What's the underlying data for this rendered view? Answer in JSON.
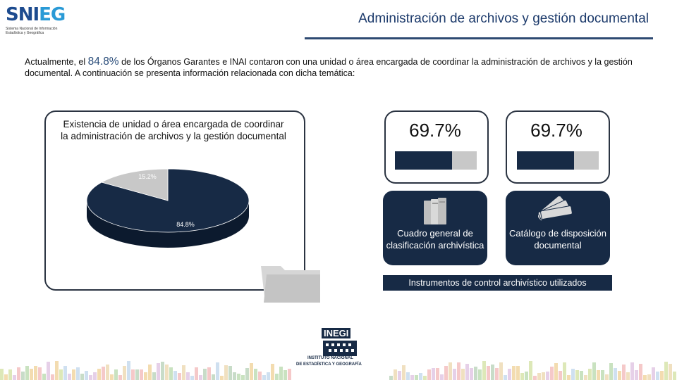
{
  "header": {
    "logo": {
      "text_main": "SNI",
      "text_accent": "EG",
      "subtitle_line1": "Sistema Nacional de Información",
      "subtitle_line2": "Estadística y Geográfica"
    },
    "title": "Administración de archivos y gestión documental"
  },
  "intro": {
    "prefix": "Actualmente, el ",
    "highlight": "84.8%",
    "suffix": " de los Órganos Garantes e INAI contaron con una unidad o área encargada de coordinar la administración de archivos y la gestión documental. A continuación se presenta información relacionada con dicha temática:"
  },
  "chart_data": {
    "type": "pie",
    "title": "Existencia de unidad o área encargada de coordinar la administración de archivos y la gestión documental",
    "slices": [
      {
        "label": "84.8%",
        "value": 84.8,
        "color": "#172a45"
      },
      {
        "label": "15.2%",
        "value": 15.2,
        "color": "#c8c8c8"
      }
    ]
  },
  "stats": [
    {
      "value_label": "69.7%",
      "value": 69.7,
      "icon": "books-icon",
      "label": "Cuadro general de clasificación archivística"
    },
    {
      "value_label": "69.7%",
      "value": 69.7,
      "icon": "swatch-fan-icon",
      "label": "Catálogo de disposición documental"
    }
  ],
  "instruments_band": "Instrumentos de control archivístico utilizados",
  "footer": {
    "inegi_name": "INEGI",
    "inegi_sub1": "INSTITUTO NACIONAL",
    "inegi_sub2": "DE ESTADÍSTICA Y GEOGRAFÍA"
  },
  "colors": {
    "navy": "#172a45",
    "grey": "#c8c8c8",
    "title_blue": "#1c3a6b",
    "accent_blue": "#2a9ad6"
  }
}
